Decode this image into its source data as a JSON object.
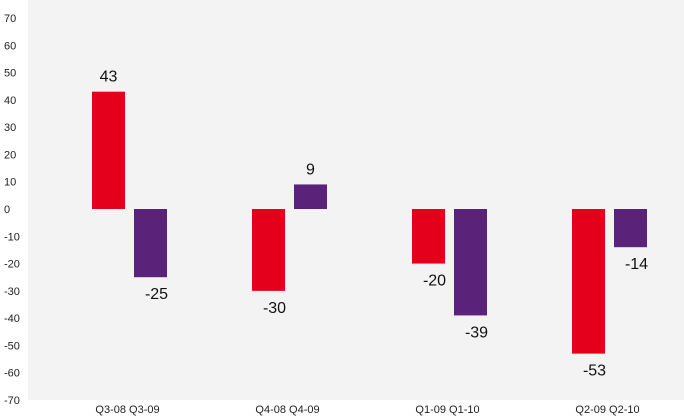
{
  "chart_data": {
    "type": "bar",
    "categories": [
      "Q3-08 Q3-09",
      "Q4-08 Q4-09",
      "Q1-09 Q1-10",
      "Q2-09 Q2-10"
    ],
    "series": [
      {
        "values": [
          43,
          -30,
          -20,
          -53
        ],
        "color": "#e4001b"
      },
      {
        "values": [
          -25,
          9,
          -39,
          -14
        ],
        "color": "#5a2379"
      }
    ],
    "data_labels": [
      [
        "43",
        "-30",
        "-20",
        "-53"
      ],
      [
        "-25",
        "9",
        "-39",
        "-14"
      ]
    ],
    "yticks": [
      "70",
      "60",
      "50",
      "40",
      "30",
      "20",
      "10",
      "0",
      "-10",
      "-20",
      "-30",
      "-40",
      "-50",
      "-60",
      "-70"
    ],
    "ylim": [
      -70,
      70
    ],
    "grid": false,
    "legend": "none",
    "background": "#f3f3f3"
  }
}
